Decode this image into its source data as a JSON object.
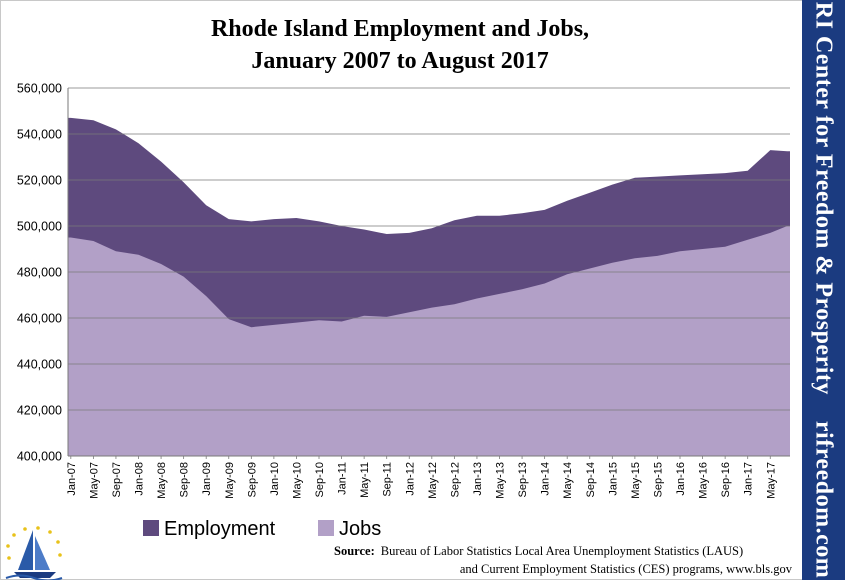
{
  "chart_data": {
    "type": "area",
    "title": [
      "Rhode Island Employment and Jobs,",
      "January 2007 to August 2017"
    ],
    "xlabel": "",
    "ylabel": "",
    "ylim": [
      400000,
      560000
    ],
    "y_ticks": [
      "560,000",
      "540,000",
      "520,000",
      "500,000",
      "480,000",
      "460,000",
      "440,000",
      "420,000",
      "400,000"
    ],
    "x_ticks": [
      "Jan-07",
      "May-07",
      "Sep-07",
      "Jan-08",
      "May-08",
      "Sep-08",
      "Jan-09",
      "May-09",
      "Sep-09",
      "Jan-10",
      "May-10",
      "Sep-10",
      "Jan-11",
      "May-11",
      "Sep-11",
      "Jan-12",
      "May-12",
      "Sep-12",
      "Jan-13",
      "May-13",
      "Sep-13",
      "Jan-14",
      "May-14",
      "Sep-14",
      "Jan-15",
      "May-15",
      "Sep-15",
      "Jan-16",
      "May-16",
      "Sep-16",
      "Jan-17",
      "May-17"
    ],
    "grid": "horizontal",
    "legend_position": "bottom-left",
    "series": [
      {
        "name": "Employment",
        "color": "#5e4a7e",
        "points": [
          [
            "Jan-07",
            547000
          ],
          [
            "May-07",
            546000
          ],
          [
            "Sep-07",
            542000
          ],
          [
            "Jan-08",
            536000
          ],
          [
            "May-08",
            528000
          ],
          [
            "Sep-08",
            519000
          ],
          [
            "Jan-09",
            509000
          ],
          [
            "May-09",
            503000
          ],
          [
            "Sep-09",
            502000
          ],
          [
            "Jan-10",
            503000
          ],
          [
            "May-10",
            503500
          ],
          [
            "Sep-10",
            502000
          ],
          [
            "Jan-11",
            500000
          ],
          [
            "May-11",
            498500
          ],
          [
            "Sep-11",
            496500
          ],
          [
            "Jan-12",
            497000
          ],
          [
            "May-12",
            499000
          ],
          [
            "Sep-12",
            502500
          ],
          [
            "Jan-13",
            504500
          ],
          [
            "May-13",
            504500
          ],
          [
            "Sep-13",
            505500
          ],
          [
            "Jan-14",
            507000
          ],
          [
            "May-14",
            511000
          ],
          [
            "Sep-14",
            514500
          ],
          [
            "Jan-15",
            518000
          ],
          [
            "May-15",
            521000
          ],
          [
            "Sep-15",
            521500
          ],
          [
            "Jan-16",
            522000
          ],
          [
            "May-16",
            522500
          ],
          [
            "Sep-16",
            523000
          ],
          [
            "Jan-17",
            524000
          ],
          [
            "May-17",
            533000
          ],
          [
            "Aug-17",
            532500
          ]
        ]
      },
      {
        "name": "Jobs",
        "color": "#b2a0c7",
        "points": [
          [
            "Jan-07",
            495000
          ],
          [
            "May-07",
            493500
          ],
          [
            "Sep-07",
            489000
          ],
          [
            "Jan-08",
            487500
          ],
          [
            "May-08",
            483500
          ],
          [
            "Sep-08",
            478000
          ],
          [
            "Jan-09",
            469500
          ],
          [
            "May-09",
            459500
          ],
          [
            "Sep-09",
            456000
          ],
          [
            "Jan-10",
            457000
          ],
          [
            "May-10",
            458000
          ],
          [
            "Sep-10",
            459000
          ],
          [
            "Jan-11",
            458500
          ],
          [
            "May-11",
            461000
          ],
          [
            "Sep-11",
            460500
          ],
          [
            "Jan-12",
            462500
          ],
          [
            "May-12",
            464500
          ],
          [
            "Sep-12",
            466000
          ],
          [
            "Jan-13",
            468500
          ],
          [
            "May-13",
            470500
          ],
          [
            "Sep-13",
            472500
          ],
          [
            "Jan-14",
            475000
          ],
          [
            "May-14",
            479000
          ],
          [
            "Sep-14",
            481500
          ],
          [
            "Jan-15",
            484000
          ],
          [
            "May-15",
            486000
          ],
          [
            "Sep-15",
            487000
          ],
          [
            "Jan-16",
            489000
          ],
          [
            "May-16",
            490000
          ],
          [
            "Sep-16",
            491000
          ],
          [
            "Jan-17",
            494000
          ],
          [
            "May-17",
            497000
          ],
          [
            "Aug-17",
            500000
          ]
        ]
      }
    ]
  },
  "source_text": {
    "label": "Source:",
    "line1": "Bureau of Labor Statistics Local Area Unemployment Statistics (LAUS)",
    "line2": "and Current Employment Statistics (CES) programs, www.bls.gov"
  },
  "sidebar": {
    "org_name": "RI Center for Freedom & Prosperity",
    "website": "rifreedom.com",
    "background_color": "#1b3b80"
  },
  "logo": {
    "icon": "sailboat-stars-logo"
  }
}
